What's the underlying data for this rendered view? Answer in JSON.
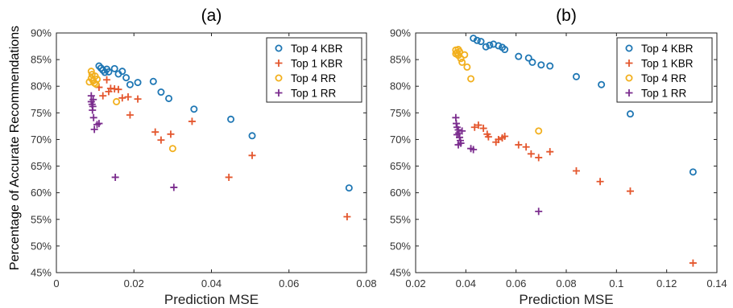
{
  "figure": {
    "ylabel": "Percentage of Accurate Recommendations"
  },
  "series_styles": [
    {
      "name": "Top 4 KBR",
      "marker": "circle",
      "color": "#1f77b4"
    },
    {
      "name": "Top 1 KBR",
      "marker": "plus",
      "color": "#e4572e"
    },
    {
      "name": "Top 4 RR",
      "marker": "circle",
      "color": "#f2b01e"
    },
    {
      "name": "Top 1 RR",
      "marker": "plus",
      "color": "#7b2d8e"
    }
  ],
  "chart_data": [
    {
      "type": "scatter",
      "title": "(a)",
      "xlabel": "Prediction MSE",
      "ylabel": "Percentage of Accurate Recommendations",
      "xlim": [
        0,
        0.08
      ],
      "ylim": [
        45,
        90
      ],
      "xticks": [
        0,
        0.02,
        0.04,
        0.06,
        0.08
      ],
      "xtick_labels": [
        "0",
        "0.02",
        "0.04",
        "0.06",
        "0.08"
      ],
      "yticks": [
        45,
        50,
        55,
        60,
        65,
        70,
        75,
        80,
        85,
        90
      ],
      "ytick_labels": [
        "45%",
        "50%",
        "55%",
        "60%",
        "65%",
        "70%",
        "75%",
        "80%",
        "85%",
        "90%"
      ],
      "legend": {
        "position": "top-right",
        "entries": [
          "Top 4 KBR",
          "Top 1 KBR",
          "Top 4 RR",
          "Top 1 RR"
        ]
      },
      "series": [
        {
          "name": "Top 4 KBR",
          "points": [
            [
              0.011,
              83.8
            ],
            [
              0.0115,
              83.4
            ],
            [
              0.012,
              83.0
            ],
            [
              0.0125,
              82.6
            ],
            [
              0.013,
              83.2
            ],
            [
              0.0135,
              82.7
            ],
            [
              0.015,
              83.3
            ],
            [
              0.016,
              82.3
            ],
            [
              0.017,
              82.8
            ],
            [
              0.018,
              81.6
            ],
            [
              0.019,
              80.3
            ],
            [
              0.021,
              80.7
            ],
            [
              0.025,
              80.9
            ],
            [
              0.027,
              78.9
            ],
            [
              0.029,
              77.7
            ],
            [
              0.0355,
              75.7
            ],
            [
              0.045,
              73.8
            ],
            [
              0.0505,
              70.7
            ],
            [
              0.0755,
              60.9
            ]
          ]
        },
        {
          "name": "Top 1 KBR",
          "points": [
            [
              0.011,
              79.8
            ],
            [
              0.012,
              78.2
            ],
            [
              0.013,
              81.2
            ],
            [
              0.0135,
              79.0
            ],
            [
              0.014,
              79.6
            ],
            [
              0.015,
              79.5
            ],
            [
              0.016,
              79.4
            ],
            [
              0.017,
              77.8
            ],
            [
              0.019,
              74.6
            ],
            [
              0.0185,
              78.0
            ],
            [
              0.021,
              77.6
            ],
            [
              0.0255,
              71.4
            ],
            [
              0.027,
              69.9
            ],
            [
              0.0295,
              71.0
            ],
            [
              0.035,
              73.4
            ],
            [
              0.0445,
              62.9
            ],
            [
              0.0505,
              67.0
            ],
            [
              0.075,
              55.5
            ]
          ]
        },
        {
          "name": "Top 4 RR",
          "points": [
            [
              0.0085,
              80.8
            ],
            [
              0.009,
              81.5
            ],
            [
              0.0092,
              82.2
            ],
            [
              0.0095,
              81.0
            ],
            [
              0.0098,
              80.6
            ],
            [
              0.01,
              81.9
            ],
            [
              0.0102,
              80.4
            ],
            [
              0.0105,
              81.3
            ],
            [
              0.009,
              82.8
            ],
            [
              0.0155,
              77.1
            ],
            [
              0.03,
              68.3
            ]
          ]
        },
        {
          "name": "Top 1 RR",
          "points": [
            [
              0.009,
              78.2
            ],
            [
              0.009,
              77.1
            ],
            [
              0.0092,
              76.6
            ],
            [
              0.0094,
              76.2
            ],
            [
              0.0096,
              74.1
            ],
            [
              0.0093,
              75.5
            ],
            [
              0.0098,
              71.9
            ],
            [
              0.0105,
              72.8
            ],
            [
              0.011,
              73.0
            ],
            [
              0.0095,
              77.5
            ],
            [
              0.0152,
              62.9
            ],
            [
              0.0303,
              61.0
            ]
          ]
        }
      ]
    },
    {
      "type": "scatter",
      "title": "(b)",
      "xlabel": "Prediction MSE",
      "ylabel": "",
      "xlim": [
        0.02,
        0.14
      ],
      "ylim": [
        45,
        90
      ],
      "xticks": [
        0.02,
        0.04,
        0.06,
        0.08,
        0.1,
        0.12,
        0.14
      ],
      "xtick_labels": [
        "0.02",
        "0.04",
        "0.06",
        "0.08",
        "0.1",
        "0.12",
        "0.14"
      ],
      "yticks": [
        45,
        50,
        55,
        60,
        65,
        70,
        75,
        80,
        85,
        90
      ],
      "ytick_labels": [
        "45%",
        "50%",
        "55%",
        "60%",
        "65%",
        "70%",
        "75%",
        "80%",
        "85%",
        "90%"
      ],
      "legend": {
        "position": "top-right",
        "entries": [
          "Top 4 KBR",
          "Top 1 KBR",
          "Top 4 RR",
          "Top 1 RR"
        ]
      },
      "series": [
        {
          "name": "Top 4 KBR",
          "points": [
            [
              0.043,
              89.0
            ],
            [
              0.0445,
              88.6
            ],
            [
              0.046,
              88.4
            ],
            [
              0.048,
              87.4
            ],
            [
              0.0495,
              87.7
            ],
            [
              0.051,
              87.9
            ],
            [
              0.053,
              87.6
            ],
            [
              0.0545,
              87.3
            ],
            [
              0.0555,
              86.9
            ],
            [
              0.061,
              85.6
            ],
            [
              0.065,
              85.3
            ],
            [
              0.0665,
              84.5
            ],
            [
              0.07,
              84.0
            ],
            [
              0.0735,
              83.8
            ],
            [
              0.084,
              81.8
            ],
            [
              0.094,
              80.3
            ],
            [
              0.1055,
              74.8
            ],
            [
              0.1305,
              63.9
            ]
          ]
        },
        {
          "name": "Top 1 KBR",
          "points": [
            [
              0.0435,
              72.3
            ],
            [
              0.045,
              72.7
            ],
            [
              0.047,
              72.1
            ],
            [
              0.0485,
              71.0
            ],
            [
              0.049,
              70.5
            ],
            [
              0.052,
              69.5
            ],
            [
              0.053,
              70.0
            ],
            [
              0.0545,
              70.3
            ],
            [
              0.0555,
              70.6
            ],
            [
              0.061,
              69.0
            ],
            [
              0.064,
              68.6
            ],
            [
              0.066,
              67.3
            ],
            [
              0.069,
              66.6
            ],
            [
              0.0735,
              67.7
            ],
            [
              0.084,
              64.1
            ],
            [
              0.0935,
              62.1
            ],
            [
              0.1055,
              60.3
            ],
            [
              0.1305,
              46.8
            ]
          ]
        },
        {
          "name": "Top 4 RR",
          "points": [
            [
              0.036,
              86.8
            ],
            [
              0.0365,
              86.3
            ],
            [
              0.037,
              85.8
            ],
            [
              0.0375,
              86.5
            ],
            [
              0.038,
              85.2
            ],
            [
              0.0385,
              84.5
            ],
            [
              0.036,
              86.1
            ],
            [
              0.037,
              86.9
            ],
            [
              0.0395,
              85.9
            ],
            [
              0.0405,
              83.6
            ],
            [
              0.042,
              81.4
            ],
            [
              0.069,
              71.6
            ]
          ]
        },
        {
          "name": "Top 1 RR",
          "points": [
            [
              0.036,
              74.1
            ],
            [
              0.0362,
              73.0
            ],
            [
              0.0365,
              72.3
            ],
            [
              0.037,
              71.8
            ],
            [
              0.0372,
              71.2
            ],
            [
              0.0375,
              70.4
            ],
            [
              0.0378,
              69.8
            ],
            [
              0.038,
              69.3
            ],
            [
              0.0365,
              70.9
            ],
            [
              0.037,
              69.0
            ],
            [
              0.0385,
              71.6
            ],
            [
              0.042,
              68.3
            ],
            [
              0.043,
              68.1
            ],
            [
              0.069,
              56.5
            ]
          ]
        }
      ]
    }
  ]
}
